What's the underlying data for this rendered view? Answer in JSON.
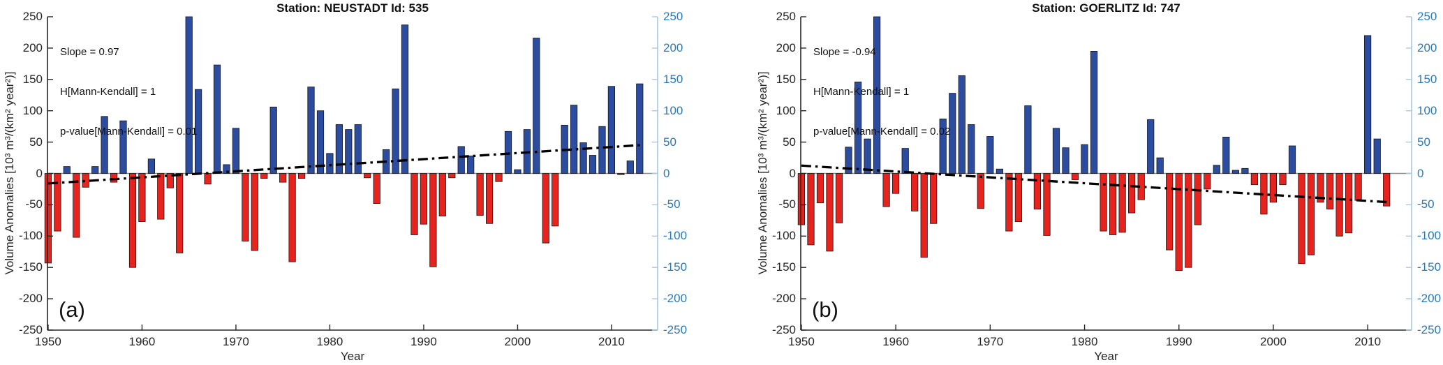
{
  "figure": {
    "colors": {
      "bar_positive": "#2b4c9f",
      "bar_negative": "#e7231e",
      "bar_edge": "#14161a",
      "trend_line": "#000000",
      "zero_line": "#8c8c8c",
      "axis": "#262626",
      "right_axis_line": "#a9c7de",
      "right_axis_text": "#2979b7"
    }
  },
  "chart_data": [
    {
      "type": "bar",
      "panel_label": "(a)",
      "title": "Station: NEUSTADT Id: 535",
      "annotation_lines": [
        "Slope = 0.97",
        "H[Mann-Kendall] = 1",
        "p-value[Mann-Kendall] = 0.01"
      ],
      "xlabel": "Year",
      "ylabel": "Volume Anomalies [10³ m³/(km² year²)]",
      "ylim": [
        -250,
        250
      ],
      "x_ticks": [
        1950,
        1960,
        1970,
        1980,
        1990,
        2000,
        2010
      ],
      "y_ticks": [
        250,
        200,
        150,
        100,
        50,
        0,
        -50,
        -100,
        -150,
        -200,
        -250
      ],
      "grid": false,
      "bar_color_rule": "blue positive, red negative",
      "start_year": 1950,
      "end_year": 2013,
      "values": [
        -143,
        -92,
        11,
        -102,
        -22,
        11,
        91,
        -14,
        84,
        -150,
        -77,
        23,
        -73,
        -23,
        -127,
        250,
        134,
        -17,
        173,
        14,
        72,
        -108,
        -123,
        -8,
        106,
        -14,
        -141,
        -8,
        138,
        100,
        32,
        78,
        70,
        78,
        -7,
        -48,
        38,
        135,
        237,
        -98,
        -81,
        -149,
        -68,
        -7,
        43,
        28,
        -67,
        -80,
        -13,
        67,
        6,
        70,
        216,
        -111,
        -84,
        77,
        109,
        49,
        29,
        75,
        139,
        -2,
        20,
        143
      ],
      "trend": {
        "style": "dash-dot",
        "slope_per_year": 0.97,
        "year_start": 1950,
        "value_start": -16,
        "year_end": 2013.3,
        "value_end": 45.4
      }
    },
    {
      "type": "bar",
      "panel_label": "(b)",
      "title": "Station: GOERLITZ Id: 747",
      "annotation_lines": [
        "Slope = -0.94",
        "H[Mann-Kendall] = 1",
        "p-value[Mann-Kendall] = 0.02"
      ],
      "xlabel": "Year",
      "ylabel": "Volume Anomalies [10³ m³/(km² year²)]",
      "ylim": [
        -250,
        250
      ],
      "x_ticks": [
        1950,
        1960,
        1970,
        1980,
        1990,
        2000,
        2010
      ],
      "y_ticks": [
        250,
        200,
        150,
        100,
        50,
        0,
        -50,
        -100,
        -150,
        -200,
        -250
      ],
      "grid": false,
      "bar_color_rule": "blue positive, red negative",
      "start_year": 1950,
      "end_year": 2012,
      "values": [
        -82,
        -114,
        -47,
        -124,
        -79,
        42,
        146,
        55,
        250,
        -53,
        -32,
        40,
        -60,
        -134,
        -80,
        87,
        128,
        156,
        78,
        -56,
        59,
        7,
        -92,
        -77,
        108,
        -57,
        -99,
        72,
        41,
        -10,
        46,
        195,
        -92,
        -98,
        -94,
        -63,
        -42,
        86,
        25,
        -122,
        -155,
        -150,
        -82,
        -25,
        13,
        58,
        5,
        8,
        -18,
        -65,
        -46,
        -18,
        44,
        -144,
        -130,
        -46,
        -57,
        -100,
        -95,
        -43,
        220,
        55,
        -52
      ],
      "trend": {
        "style": "dash-dot",
        "slope_per_year": -0.94,
        "year_start": 1950,
        "value_start": 12.5,
        "year_end": 2012.3,
        "value_end": -46
      }
    }
  ]
}
